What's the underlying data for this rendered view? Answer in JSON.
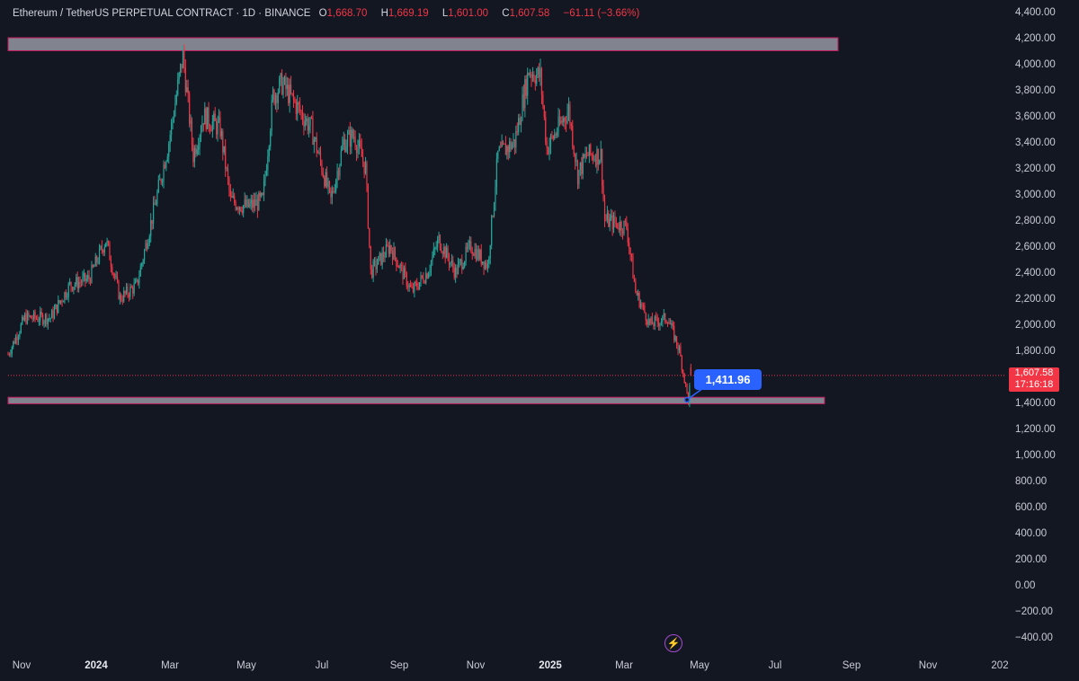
{
  "header": {
    "symbol": "Ethereum / TetherUS PERPETUAL CONTRACT · 1D · BINANCE",
    "open_label": "O",
    "open": "1,668.70",
    "high_label": "H",
    "high": "1,669.19",
    "low_label": "L",
    "low": "1,601.00",
    "close_label": "C",
    "close": "1,607.58",
    "change": "−61.11 (−3.66%)"
  },
  "price_tag": {
    "price": "1,607.58",
    "countdown": "17:16:18"
  },
  "callout": {
    "value": "1,411.96"
  },
  "icons": {
    "lightning": "lightning-icon"
  },
  "colors": {
    "background": "#131722",
    "up": "#26a69a",
    "down": "#f23645",
    "zone": "#9598a1",
    "callout": "#2962ff"
  },
  "chart_data": {
    "type": "candlestick",
    "title": "Ethereum / TetherUS PERPETUAL CONTRACT · 1D · BINANCE",
    "ylim": [
      -400,
      4400
    ],
    "y_ticks": [
      "4,400.00",
      "4,200.00",
      "4,000.00",
      "3,800.00",
      "3,600.00",
      "3,400.00",
      "3,200.00",
      "3,000.00",
      "2,800.00",
      "2,600.00",
      "2,400.00",
      "2,200.00",
      "2,000.00",
      "1,800.00",
      "1,600.00",
      "1,400.00",
      "1,200.00",
      "1,000.00",
      "800.00",
      "600.00",
      "400.00",
      "200.00",
      "0.00",
      "−200.00",
      "−400.00"
    ],
    "x_ticks": [
      "Nov",
      "2024",
      "Mar",
      "May",
      "Jul",
      "Sep",
      "Nov",
      "2025",
      "Mar",
      "May",
      "Jul",
      "Sep",
      "Nov",
      "202"
    ],
    "x_ticks_bold": [
      "2024",
      "2025"
    ],
    "last_price": 1607.58,
    "zones": [
      {
        "name": "resistance",
        "from": 4100,
        "to": 4200
      },
      {
        "name": "support",
        "from": 1390,
        "to": 1440
      }
    ],
    "price_anchors": [
      {
        "date": "2023-10-28",
        "price": 1770
      },
      {
        "date": "2023-11-10",
        "price": 2050
      },
      {
        "date": "2023-11-30",
        "price": 2050
      },
      {
        "date": "2023-12-15",
        "price": 2300
      },
      {
        "date": "2023-12-30",
        "price": 2350
      },
      {
        "date": "2024-01-12",
        "price": 2650
      },
      {
        "date": "2024-01-23",
        "price": 2200
      },
      {
        "date": "2024-02-05",
        "price": 2300
      },
      {
        "date": "2024-02-20",
        "price": 2950
      },
      {
        "date": "2024-03-01",
        "price": 3400
      },
      {
        "date": "2024-03-12",
        "price": 4070
      },
      {
        "date": "2024-03-20",
        "price": 3300
      },
      {
        "date": "2024-03-28",
        "price": 3600
      },
      {
        "date": "2024-04-10",
        "price": 3500
      },
      {
        "date": "2024-04-18",
        "price": 2950
      },
      {
        "date": "2024-05-01",
        "price": 2900
      },
      {
        "date": "2024-05-13",
        "price": 2950
      },
      {
        "date": "2024-05-21",
        "price": 3750
      },
      {
        "date": "2024-05-28",
        "price": 3850
      },
      {
        "date": "2024-06-10",
        "price": 3650
      },
      {
        "date": "2024-06-20",
        "price": 3500
      },
      {
        "date": "2024-07-05",
        "price": 2950
      },
      {
        "date": "2024-07-15",
        "price": 3400
      },
      {
        "date": "2024-07-23",
        "price": 3450
      },
      {
        "date": "2024-08-01",
        "price": 3200
      },
      {
        "date": "2024-08-05",
        "price": 2400
      },
      {
        "date": "2024-08-20",
        "price": 2600
      },
      {
        "date": "2024-09-06",
        "price": 2250
      },
      {
        "date": "2024-09-18",
        "price": 2400
      },
      {
        "date": "2024-09-27",
        "price": 2650
      },
      {
        "date": "2024-10-10",
        "price": 2400
      },
      {
        "date": "2024-10-22",
        "price": 2600
      },
      {
        "date": "2024-11-04",
        "price": 2450
      },
      {
        "date": "2024-11-12",
        "price": 3300
      },
      {
        "date": "2024-11-25",
        "price": 3400
      },
      {
        "date": "2024-12-06",
        "price": 3950
      },
      {
        "date": "2024-12-15",
        "price": 3900
      },
      {
        "date": "2024-12-20",
        "price": 3350
      },
      {
        "date": "2025-01-06",
        "price": 3650
      },
      {
        "date": "2025-01-13",
        "price": 3150
      },
      {
        "date": "2025-01-20",
        "price": 3300
      },
      {
        "date": "2025-01-31",
        "price": 3300
      },
      {
        "date": "2025-02-03",
        "price": 2800
      },
      {
        "date": "2025-02-20",
        "price": 2750
      },
      {
        "date": "2025-02-27",
        "price": 2250
      },
      {
        "date": "2025-03-10",
        "price": 2000
      },
      {
        "date": "2025-03-24",
        "price": 2050
      },
      {
        "date": "2025-04-02",
        "price": 1800
      },
      {
        "date": "2025-04-09",
        "price": 1411.96
      },
      {
        "date": "2025-04-11",
        "price": 1607.58
      }
    ]
  }
}
